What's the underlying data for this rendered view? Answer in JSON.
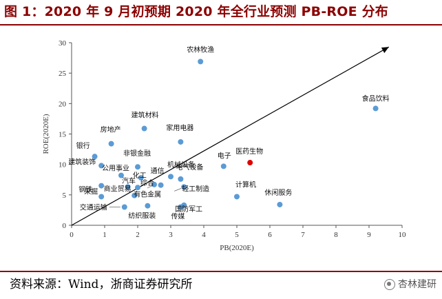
{
  "title": "图 1：2020 年 9 月初预期 2020 年全行业预测 PB-ROE 分布",
  "source": "资料来源：Wind，浙商证券研究所",
  "watermark": "杏林建研",
  "colors": {
    "title": "#8c0000",
    "marker": "#5b9bd5",
    "highlight_label": "#e00000",
    "highlight_marker": "#e00000"
  },
  "chart_data": {
    "type": "scatter",
    "xlabel": "PB(2020E)",
    "ylabel": "ROE(2020E)",
    "xlim": [
      0,
      10
    ],
    "ylim": [
      0,
      30
    ],
    "xticks": [
      0,
      1,
      2,
      3,
      4,
      5,
      6,
      7,
      8,
      9,
      10
    ],
    "yticks": [
      0,
      5,
      10,
      15,
      20,
      25,
      30
    ],
    "grid": false,
    "trend_arrow": {
      "from": [
        0,
        0
      ],
      "to": [
        9.6,
        29.3
      ]
    },
    "points": [
      {
        "label": "农林牧渔",
        "x": 3.9,
        "y": 26.9
      },
      {
        "label": "食品饮料",
        "x": 9.2,
        "y": 19.2
      },
      {
        "label": "建筑材料",
        "x": 2.2,
        "y": 15.9
      },
      {
        "label": "家用电器",
        "x": 3.3,
        "y": 13.7
      },
      {
        "label": "房地产",
        "x": 1.2,
        "y": 13.4
      },
      {
        "label": "银行",
        "x": 0.7,
        "y": 11.3
      },
      {
        "label": "建筑装饰",
        "x": 0.9,
        "y": 9.8
      },
      {
        "label": "公用事业",
        "x": 1.5,
        "y": 8.2
      },
      {
        "label": "非银金融",
        "x": 2.0,
        "y": 9.6
      },
      {
        "label": "机械设备",
        "x": 3.0,
        "y": 8.0
      },
      {
        "label": "电子",
        "x": 4.6,
        "y": 9.7
      },
      {
        "label": "医药生物",
        "x": 5.4,
        "y": 10.3,
        "highlight": true
      },
      {
        "label": "化工",
        "x": 2.1,
        "y": 7.8
      },
      {
        "label": "通信",
        "x": 2.7,
        "y": 6.6
      },
      {
        "label": "汽车",
        "x": 2.0,
        "y": 6.2
      },
      {
        "label": "钢铁",
        "x": 0.9,
        "y": 6.5
      },
      {
        "label": "商业贸易",
        "x": 1.7,
        "y": 6.3
      },
      {
        "label": "综合",
        "x": 2.5,
        "y": 6.7
      },
      {
        "label": "电气设备",
        "x": 3.3,
        "y": 7.6
      },
      {
        "label": "轻工制造",
        "x": 3.4,
        "y": 6.3
      },
      {
        "label": "计算机",
        "x": 5.0,
        "y": 4.7
      },
      {
        "label": "采掘",
        "x": 0.9,
        "y": 4.7
      },
      {
        "label": "有色金属",
        "x": 1.9,
        "y": 4.9
      },
      {
        "label": "国防军工",
        "x": 3.4,
        "y": 3.3
      },
      {
        "label": "休闲服务",
        "x": 6.3,
        "y": 3.4
      },
      {
        "label": "交通运输",
        "x": 1.6,
        "y": 3.0
      },
      {
        "label": "纺织服装",
        "x": 2.3,
        "y": 3.2
      },
      {
        "label": "传媒",
        "x": 3.3,
        "y": 3.0
      }
    ]
  }
}
